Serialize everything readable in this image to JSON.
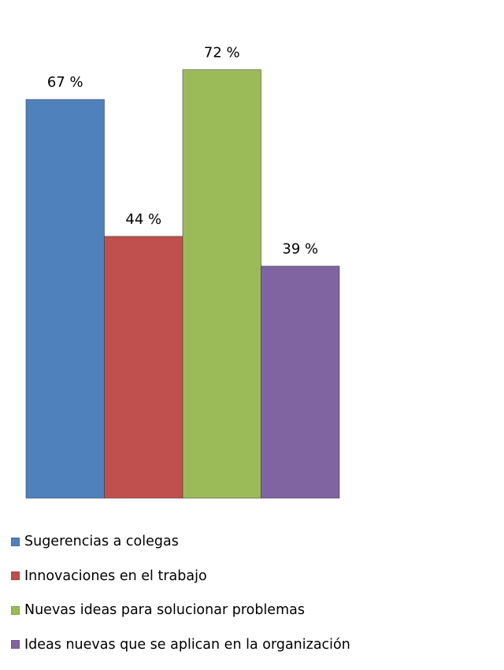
{
  "chart_data": {
    "type": "bar",
    "categories": [
      "Sugerencias a colegas",
      "Innovaciones en el trabajo",
      "Nuevas ideas para solucionar problemas",
      "Ideas nuevas que se aplican en la organización"
    ],
    "values": [
      67,
      44,
      72,
      39
    ],
    "data_labels": [
      "67 %",
      "44 %",
      "72 %",
      "39 %"
    ],
    "colors": [
      "#4f81bd",
      "#c0504d",
      "#9bbb59",
      "#8064a2"
    ],
    "title": "",
    "xlabel": "",
    "ylabel": "",
    "ylim": [
      0,
      100
    ],
    "grid": false,
    "legend_position": "bottom"
  },
  "legend": {
    "items": [
      {
        "label": "Sugerencias a colegas",
        "color": "#4f81bd"
      },
      {
        "label": "Innovaciones en el trabajo",
        "color": "#c0504d"
      },
      {
        "label": "Nuevas ideas para solucionar problemas",
        "color": "#9bbb59"
      },
      {
        "label": "Ideas nuevas que se aplican en la organización",
        "color": "#8064a2"
      }
    ]
  }
}
